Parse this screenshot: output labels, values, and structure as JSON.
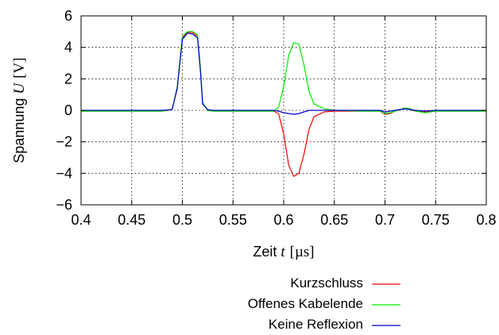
{
  "chart_data": {
    "type": "line",
    "title": "",
    "xlabel": {
      "text": "Zeit ",
      "symbol": "t",
      "unit": "[µs]"
    },
    "ylabel": {
      "text": "Spannung ",
      "symbol": "U",
      "unit": "[V]"
    },
    "xlim": [
      0.4,
      0.8
    ],
    "ylim": [
      -6,
      6
    ],
    "xticks": [
      0.4,
      0.45,
      0.5,
      0.55,
      0.6,
      0.65,
      0.7,
      0.75,
      0.8
    ],
    "xtick_labels": [
      "0.4",
      "0.45",
      "0.5",
      "0.55",
      "0.6",
      "0.65",
      "0.7",
      "0.75",
      "0.8"
    ],
    "yticks": [
      -6,
      -4,
      -2,
      0,
      2,
      4,
      6
    ],
    "ytick_labels": [
      "−6",
      "−4",
      "−2",
      "0",
      "2",
      "4",
      "6"
    ],
    "grid": true,
    "legend_position": "bottom-right-below",
    "series": [
      {
        "name": "Kurzschluss",
        "color": "#ff0000",
        "x": [
          0.4,
          0.45,
          0.48,
          0.49,
          0.495,
          0.5,
          0.505,
          0.51,
          0.515,
          0.518,
          0.52,
          0.525,
          0.53,
          0.55,
          0.58,
          0.59,
          0.595,
          0.6,
          0.605,
          0.61,
          0.615,
          0.62,
          0.625,
          0.63,
          0.64,
          0.65,
          0.68,
          0.695,
          0.7,
          0.705,
          0.71,
          0.715,
          0.72,
          0.725,
          0.73,
          0.74,
          0.75,
          0.78,
          0.8
        ],
        "y": [
          -0.05,
          -0.05,
          -0.05,
          0.05,
          1.5,
          4.6,
          4.95,
          4.95,
          4.7,
          2.5,
          0.5,
          0.0,
          -0.05,
          -0.05,
          -0.05,
          -0.05,
          -0.2,
          -1.5,
          -3.5,
          -4.2,
          -4.0,
          -2.8,
          -1.2,
          -0.4,
          -0.1,
          -0.05,
          -0.05,
          -0.05,
          -0.25,
          -0.2,
          -0.05,
          0.05,
          0.15,
          0.05,
          -0.05,
          -0.1,
          -0.05,
          -0.05,
          -0.05
        ]
      },
      {
        "name": "Offenes Kabelende",
        "color": "#00ee00",
        "x": [
          0.4,
          0.45,
          0.48,
          0.49,
          0.495,
          0.5,
          0.505,
          0.51,
          0.515,
          0.518,
          0.52,
          0.525,
          0.53,
          0.55,
          0.58,
          0.59,
          0.595,
          0.6,
          0.605,
          0.61,
          0.615,
          0.62,
          0.625,
          0.63,
          0.64,
          0.65,
          0.68,
          0.695,
          0.7,
          0.705,
          0.71,
          0.715,
          0.72,
          0.725,
          0.73,
          0.74,
          0.75,
          0.78,
          0.8
        ],
        "y": [
          -0.05,
          -0.05,
          -0.05,
          0.05,
          1.5,
          4.7,
          5.0,
          5.0,
          4.8,
          2.6,
          0.5,
          0.0,
          -0.05,
          -0.05,
          -0.05,
          -0.05,
          0.2,
          1.5,
          3.5,
          4.3,
          4.2,
          2.9,
          1.2,
          0.4,
          0.1,
          0.0,
          -0.05,
          -0.05,
          -0.2,
          -0.15,
          -0.05,
          0.05,
          0.15,
          0.1,
          -0.05,
          -0.15,
          -0.05,
          -0.05,
          -0.05
        ]
      },
      {
        "name": "Keine Reflexion",
        "color": "#0000cc",
        "x": [
          0.4,
          0.45,
          0.48,
          0.49,
          0.495,
          0.5,
          0.505,
          0.51,
          0.515,
          0.518,
          0.52,
          0.525,
          0.53,
          0.55,
          0.58,
          0.59,
          0.595,
          0.6,
          0.605,
          0.61,
          0.615,
          0.62,
          0.625,
          0.63,
          0.64,
          0.65,
          0.68,
          0.695,
          0.7,
          0.705,
          0.71,
          0.715,
          0.72,
          0.725,
          0.73,
          0.74,
          0.75,
          0.78,
          0.8
        ],
        "y": [
          0.0,
          0.0,
          0.0,
          0.05,
          1.4,
          4.5,
          4.9,
          4.85,
          4.6,
          2.4,
          0.4,
          0.05,
          0.0,
          0.0,
          0.0,
          0.0,
          -0.05,
          -0.15,
          -0.2,
          -0.25,
          -0.2,
          -0.1,
          0.0,
          0.0,
          0.0,
          0.0,
          0.0,
          0.0,
          -0.1,
          -0.05,
          0.0,
          0.05,
          0.1,
          0.05,
          0.0,
          -0.05,
          0.0,
          0.0,
          0.0
        ]
      }
    ]
  }
}
